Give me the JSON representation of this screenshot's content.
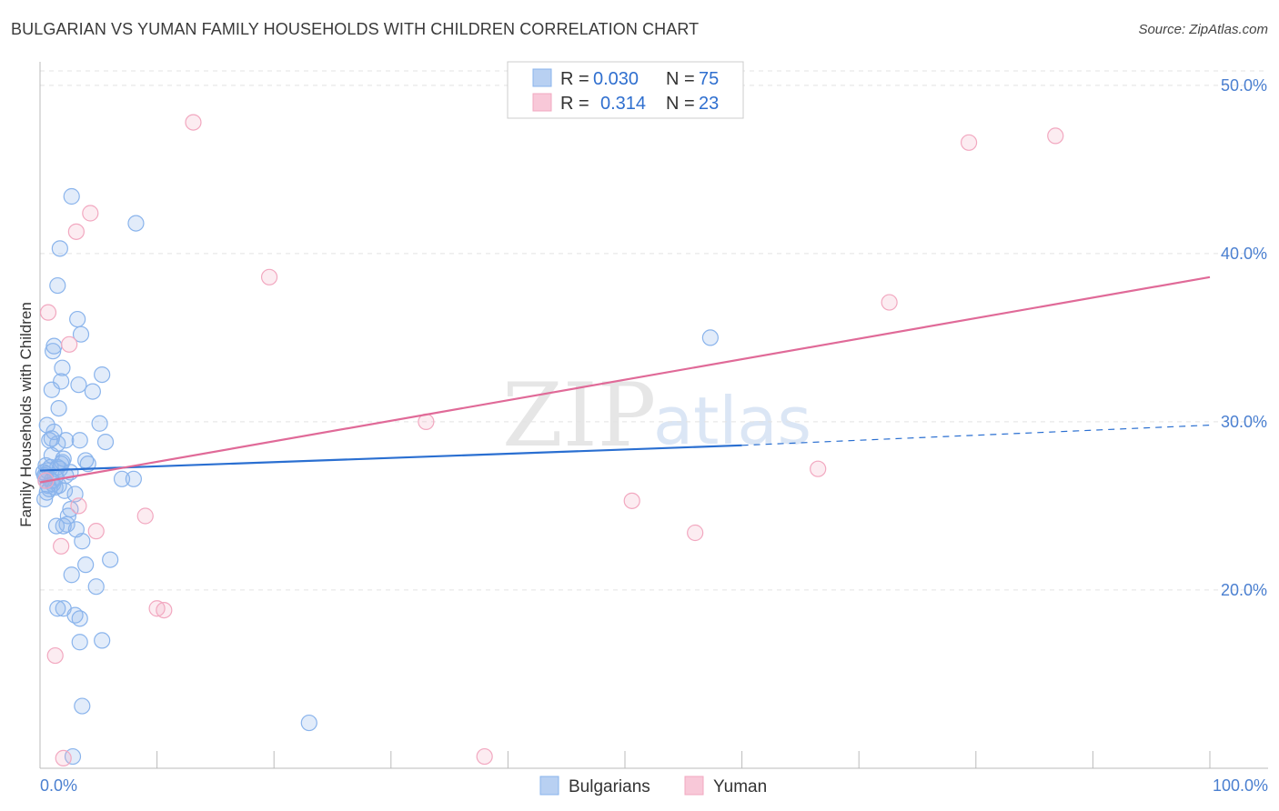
{
  "title": "BULGARIAN VS YUMAN FAMILY HOUSEHOLDS WITH CHILDREN CORRELATION CHART",
  "source": "Source: ZipAtlas.com",
  "watermark": {
    "zip": "ZIP",
    "atlas": "atlas"
  },
  "legend": {
    "rows": [
      {
        "r_label": "R =",
        "r_value": "0.030",
        "n_label": "N =",
        "n_value": "75"
      },
      {
        "r_label": "R =",
        "r_value": "0.314",
        "n_label": "N =",
        "n_value": "23"
      }
    ]
  },
  "bottom_legend": [
    "Bulgarians",
    "Yuman"
  ],
  "chart_data": {
    "type": "scatter",
    "title": "BULGARIAN VS YUMAN FAMILY HOUSEHOLDS WITH CHILDREN CORRELATION CHART",
    "xlabel": "",
    "ylabel": "Family Households with Children",
    "xlim": [
      0,
      100
    ],
    "ylim": [
      9.4,
      51.4
    ],
    "x_tick_labels": [
      "0.0%",
      "100.0%"
    ],
    "y_ticks": [
      20,
      30,
      40,
      50
    ],
    "y_tick_labels": [
      "20.0%",
      "30.0%",
      "40.0%",
      "50.0%"
    ],
    "colors": {
      "Bulgarians": "#8ab4ec",
      "Yuman": "#f2a8c0",
      "blue_line": "#2a6fd1",
      "pink_line": "#e06a98"
    },
    "series": [
      {
        "name": "Bulgarians",
        "r": 0.03,
        "n": 75,
        "trend": {
          "x": [
            0,
            60
          ],
          "y": [
            27.1,
            28.6
          ],
          "extended_to": [
            100,
            29.8
          ]
        },
        "points": [
          [
            2.7,
            43.4
          ],
          [
            8.2,
            41.8
          ],
          [
            1.7,
            40.3
          ],
          [
            1.5,
            38.1
          ],
          [
            3.2,
            36.1
          ],
          [
            3.5,
            35.2
          ],
          [
            1.2,
            34.5
          ],
          [
            1.1,
            34.2
          ],
          [
            1.9,
            33.2
          ],
          [
            5.3,
            32.8
          ],
          [
            1.8,
            32.4
          ],
          [
            3.3,
            32.2
          ],
          [
            1.0,
            31.9
          ],
          [
            4.5,
            31.8
          ],
          [
            1.6,
            30.8
          ],
          [
            5.1,
            29.9
          ],
          [
            0.6,
            29.8
          ],
          [
            1.2,
            29.4
          ],
          [
            0.8,
            28.9
          ],
          [
            1.0,
            29.0
          ],
          [
            1.5,
            28.7
          ],
          [
            3.4,
            28.9
          ],
          [
            5.6,
            28.8
          ],
          [
            2.2,
            28.9
          ],
          [
            1.0,
            28.0
          ],
          [
            1.9,
            27.6
          ],
          [
            2.0,
            27.8
          ],
          [
            3.9,
            27.7
          ],
          [
            4.1,
            27.5
          ],
          [
            0.5,
            27.4
          ],
          [
            0.6,
            27.1
          ],
          [
            1.5,
            27.3
          ],
          [
            1.8,
            27.5
          ],
          [
            2.2,
            26.8
          ],
          [
            2.6,
            27.0
          ],
          [
            0.4,
            26.8
          ],
          [
            0.5,
            26.5
          ],
          [
            1.0,
            26.5
          ],
          [
            1.3,
            26.7
          ],
          [
            0.7,
            26.2
          ],
          [
            1.3,
            26.1
          ],
          [
            1.6,
            26.2
          ],
          [
            0.6,
            25.8
          ],
          [
            0.8,
            26.0
          ],
          [
            0.4,
            25.4
          ],
          [
            7.0,
            26.6
          ],
          [
            8.0,
            26.6
          ],
          [
            3.0,
            25.7
          ],
          [
            2.6,
            24.8
          ],
          [
            2.4,
            24.4
          ],
          [
            1.4,
            23.8
          ],
          [
            2.0,
            23.8
          ],
          [
            2.3,
            23.9
          ],
          [
            3.1,
            23.6
          ],
          [
            3.6,
            22.9
          ],
          [
            6.0,
            21.8
          ],
          [
            3.9,
            21.5
          ],
          [
            2.7,
            20.9
          ],
          [
            4.8,
            20.2
          ],
          [
            1.5,
            18.9
          ],
          [
            2.0,
            18.9
          ],
          [
            3.0,
            18.5
          ],
          [
            3.4,
            18.3
          ],
          [
            5.3,
            17.0
          ],
          [
            3.4,
            16.9
          ],
          [
            3.6,
            13.1
          ],
          [
            23.0,
            12.1
          ],
          [
            2.8,
            10.1
          ],
          [
            57.3,
            35.0
          ],
          [
            0.3,
            27.0
          ],
          [
            0.9,
            27.3
          ],
          [
            1.1,
            26.3
          ],
          [
            2.1,
            25.9
          ],
          [
            0.5,
            26.9
          ],
          [
            1.7,
            27.2
          ]
        ]
      },
      {
        "name": "Yuman",
        "r": 0.314,
        "n": 23,
        "trend": {
          "x": [
            0,
            100
          ],
          "y": [
            26.4,
            38.6
          ]
        },
        "points": [
          [
            13.1,
            47.8
          ],
          [
            79.4,
            46.6
          ],
          [
            86.8,
            47.0
          ],
          [
            4.3,
            42.4
          ],
          [
            3.1,
            41.3
          ],
          [
            19.6,
            38.6
          ],
          [
            72.6,
            37.1
          ],
          [
            0.7,
            36.5
          ],
          [
            2.5,
            34.6
          ],
          [
            33.0,
            30.0
          ],
          [
            66.5,
            27.2
          ],
          [
            3.3,
            25.0
          ],
          [
            50.6,
            25.3
          ],
          [
            9.0,
            24.4
          ],
          [
            4.8,
            23.5
          ],
          [
            56.0,
            23.4
          ],
          [
            1.8,
            22.6
          ],
          [
            10.0,
            18.9
          ],
          [
            10.6,
            18.8
          ],
          [
            1.3,
            16.1
          ],
          [
            2.0,
            10.0
          ],
          [
            38.0,
            10.1
          ],
          [
            0.5,
            26.5
          ]
        ]
      }
    ]
  }
}
